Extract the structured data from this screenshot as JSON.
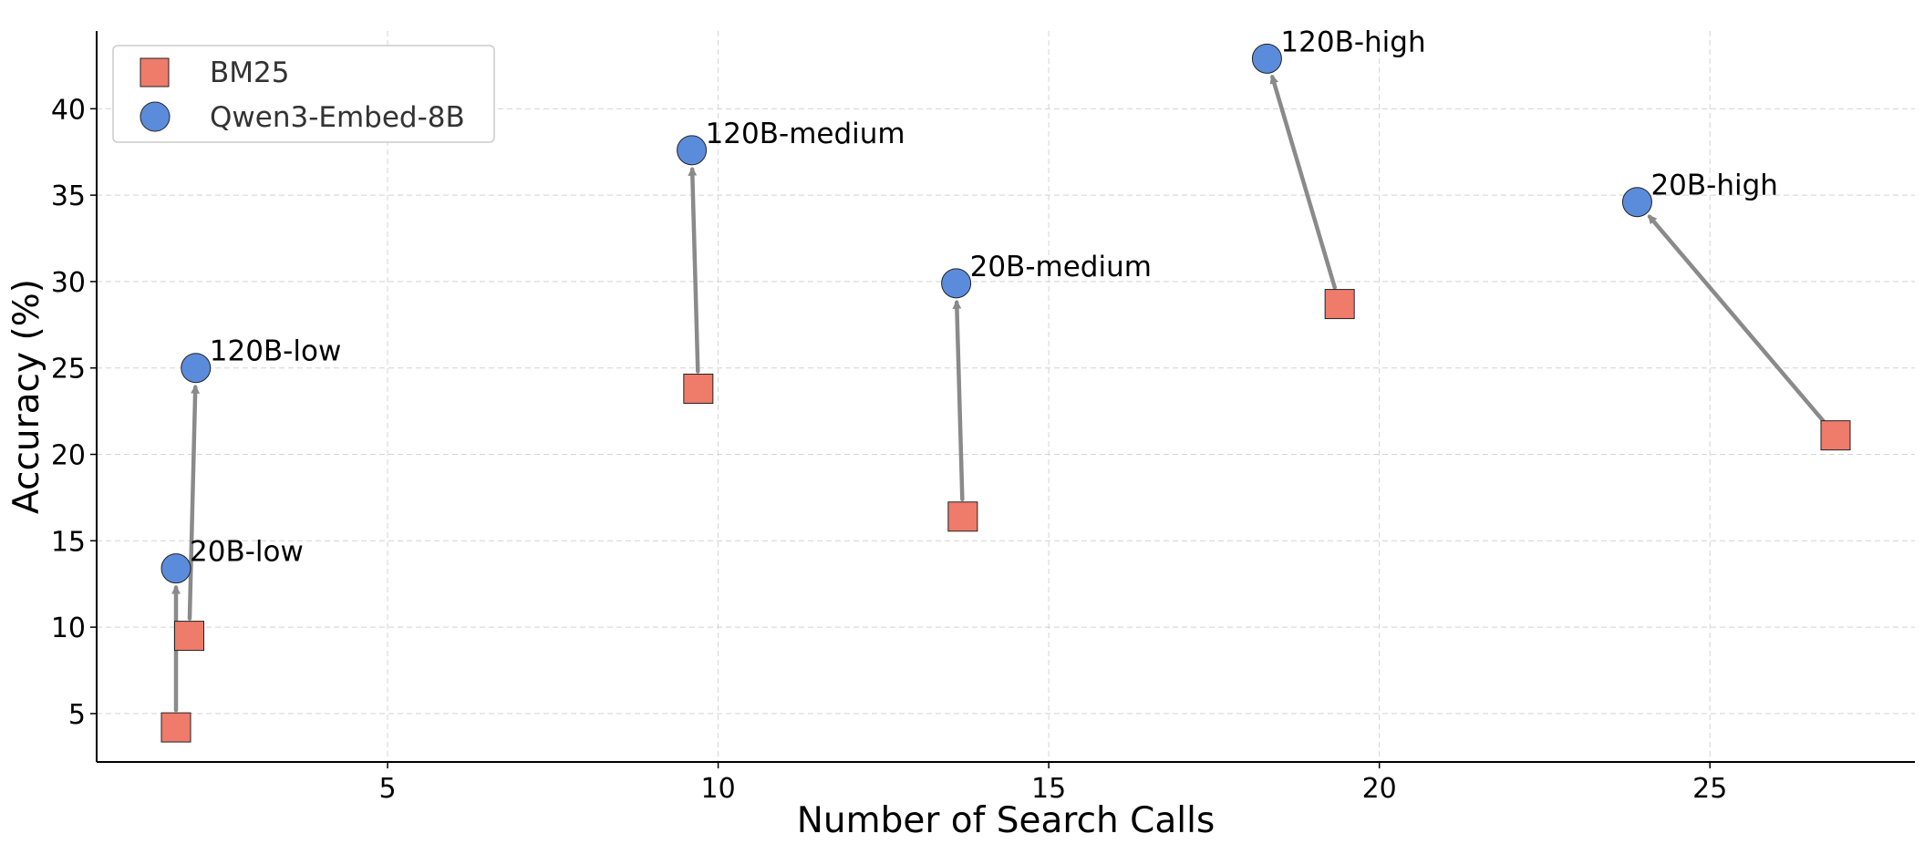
{
  "chart_data": {
    "type": "scatter",
    "title": "",
    "xlabel": "Number of Search Calls",
    "ylabel": "Accuracy (%)",
    "xlim": [
      0.6,
      28.1
    ],
    "ylim": [
      2.2,
      44.5
    ],
    "xticks": [
      5,
      10,
      15,
      20,
      25
    ],
    "yticks": [
      5,
      10,
      15,
      20,
      25,
      30,
      35,
      40
    ],
    "grid": true,
    "legend": {
      "position": "top-left",
      "entries": [
        "BM25",
        "Qwen3-Embed-8B"
      ]
    },
    "series": [
      {
        "name": "BM25",
        "marker": "square",
        "color": "#EF7B6B",
        "points": [
          {
            "label": "20B-low",
            "x": 1.8,
            "y": 4.2
          },
          {
            "label": "120B-low",
            "x": 2.0,
            "y": 9.5
          },
          {
            "label": "120B-medium",
            "x": 9.7,
            "y": 23.8
          },
          {
            "label": "20B-medium",
            "x": 13.7,
            "y": 16.4
          },
          {
            "label": "120B-high",
            "x": 19.4,
            "y": 28.7
          },
          {
            "label": "20B-high",
            "x": 26.9,
            "y": 21.1
          }
        ]
      },
      {
        "name": "Qwen3-Embed-8B",
        "marker": "circle",
        "color": "#5B8CDC",
        "points": [
          {
            "label": "20B-low",
            "x": 1.8,
            "y": 13.4
          },
          {
            "label": "120B-low",
            "x": 2.1,
            "y": 25.0
          },
          {
            "label": "120B-medium",
            "x": 9.6,
            "y": 37.6
          },
          {
            "label": "20B-medium",
            "x": 13.6,
            "y": 29.9
          },
          {
            "label": "120B-high",
            "x": 18.3,
            "y": 42.9
          },
          {
            "label": "20B-high",
            "x": 23.9,
            "y": 34.6
          }
        ]
      }
    ],
    "arrow_color": "#8A8A8A"
  }
}
